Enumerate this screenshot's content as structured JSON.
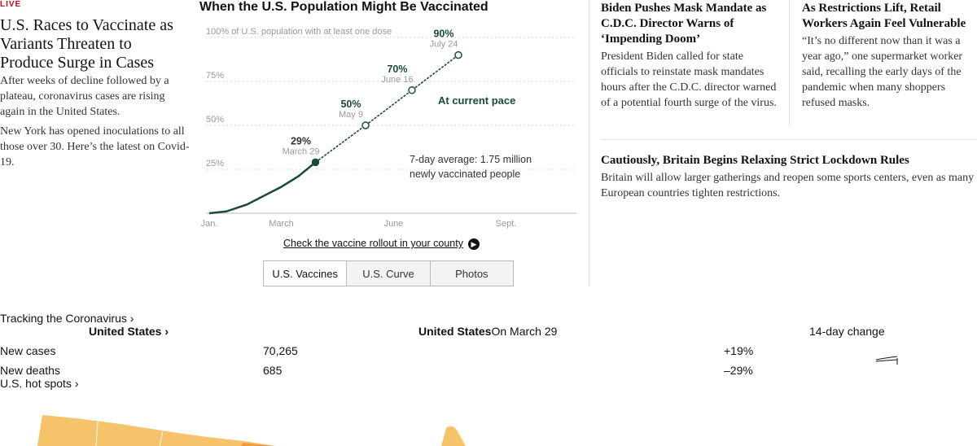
{
  "lead": {
    "label": "LIVE",
    "headline": "U.S. Races to Vaccinate as Variants Threaten to Produce Surge in Cases",
    "summary1": "After weeks of decline followed by a plateau, coronavirus cases are rising again in the United States.",
    "summary2": "New York has opened inoculations to all those over 30. Here’s the latest on Covid-19.",
    "label_color": "#d0021b"
  },
  "chart": {
    "title": "When the U.S. Population Might Be Vaccinated",
    "link_text": "Check the vaccine rollout in your county",
    "tabs": [
      "U.S. Vaccines",
      "U.S. Curve",
      "Photos"
    ],
    "line_color": "#1a4a3a"
  },
  "chart_data": {
    "type": "line",
    "title": "When the U.S. Population Might Be Vaccinated",
    "ylabel": "100% of U.S. population with at least one dose",
    "y_ticks": [
      "100% of U.S. population with at least one dose",
      "75%",
      "50%",
      "25%"
    ],
    "x_ticks": [
      "Jan.",
      "March",
      "June",
      "Sept."
    ],
    "ylim": [
      0,
      100
    ],
    "series": [
      {
        "values": [
          {
            "x": "Jan. 1",
            "y": 0
          },
          {
            "x": "Jan. 15",
            "y": 1
          },
          {
            "x": "Feb. 1",
            "y": 5
          },
          {
            "x": "Feb. 15",
            "y": 10
          },
          {
            "x": "March 1",
            "y": 15
          },
          {
            "x": "March 15",
            "y": 21
          },
          {
            "x": "March 29",
            "y": 29
          }
        ]
      },
      {
        "name": "At current pace",
        "values": [
          {
            "x": "March 29",
            "y": 29
          },
          {
            "x": "May 9",
            "y": 50
          },
          {
            "x": "June 16",
            "y": 70
          },
          {
            "x": "July 24",
            "y": 90
          }
        ]
      }
    ],
    "points": [
      {
        "label": "29%",
        "date": "March 29"
      },
      {
        "label": "50%",
        "date": "May 9"
      },
      {
        "label": "70%",
        "date": "June 16"
      },
      {
        "label": "90%",
        "date": "July 24"
      }
    ],
    "annotations": [
      "At current pace",
      "7-day average: 1.75 million",
      "newly vaccinated people"
    ]
  },
  "stories": [
    {
      "headline": "Biden Pushes Mask Mandate as C.D.C. Director Warns of ‘Impending Doom’",
      "summary": "President Biden called for state officials to reinstate mask mandates hours after the C.D.C. director warned of a potential fourth surge of the virus."
    },
    {
      "headline": "As Restrictions Lift, Retail Workers Again Feel Vulnerable",
      "summary": "“It’s no different now than it was a year ago,” one supermarket worker said, recalling the early days of the pandemic when many shoppers refused masks."
    },
    {
      "headline": "Cautiously, Britain Begins Relaxing Strict Lockdown Rules",
      "summary": "Britain will allow larger gatherings and reopen some sports centers, even as many European countries tighten restrictions."
    }
  ],
  "tracker": {
    "title": "Tracking the Coronavirus ›",
    "us_link": "United States ›",
    "col_place": "United States",
    "col_date": "On March 29",
    "col_change": "14-day change",
    "rows": [
      {
        "label": "New cases",
        "value": "70,265",
        "change": "+19%"
      },
      {
        "label": "New deaths",
        "value": "685",
        "change": "–29%"
      }
    ],
    "hotspots": "U.S. hot spots ›",
    "map_color": "#f6c36b",
    "map_accent": "#f29a3c"
  }
}
